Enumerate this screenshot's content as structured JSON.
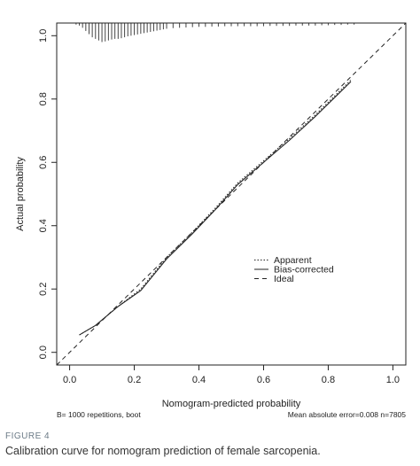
{
  "chart_data": {
    "type": "line",
    "xlabel": "Nomogram-predicted probability",
    "ylabel": "Actual probability",
    "xlim": [
      -0.04,
      1.04
    ],
    "ylim": [
      -0.04,
      1.04
    ],
    "x_ticks": [
      0.0,
      0.2,
      0.4,
      0.6,
      0.8,
      1.0
    ],
    "x_tick_labels": [
      "0.0",
      "0.2",
      "0.4",
      "0.6",
      "0.8",
      "1.0"
    ],
    "y_ticks": [
      0.0,
      0.2,
      0.4,
      0.6,
      0.8,
      1.0
    ],
    "y_tick_labels": [
      "0.0",
      "0.2",
      "0.4",
      "0.6",
      "0.8",
      "1.0"
    ],
    "grid": false,
    "legend_position": "center-right",
    "legend": [
      "Apparent",
      "Bias-corrected",
      "Ideal"
    ],
    "series": [
      {
        "name": "Apparent",
        "style": "dotted",
        "x": [
          0.03,
          0.08,
          0.15,
          0.22,
          0.3,
          0.38,
          0.45,
          0.52,
          0.6,
          0.68,
          0.76,
          0.83,
          0.87
        ],
        "y": [
          0.055,
          0.085,
          0.145,
          0.2,
          0.3,
          0.38,
          0.455,
          0.535,
          0.605,
          0.675,
          0.75,
          0.82,
          0.86
        ]
      },
      {
        "name": "Bias-corrected",
        "style": "solid",
        "x": [
          0.03,
          0.08,
          0.15,
          0.22,
          0.3,
          0.38,
          0.45,
          0.52,
          0.6,
          0.68,
          0.76,
          0.83,
          0.87
        ],
        "y": [
          0.055,
          0.085,
          0.145,
          0.195,
          0.295,
          0.375,
          0.45,
          0.53,
          0.6,
          0.67,
          0.745,
          0.815,
          0.855
        ]
      },
      {
        "name": "Ideal",
        "style": "dashed",
        "x": [
          -0.04,
          1.04
        ],
        "y": [
          -0.04,
          1.04
        ]
      }
    ],
    "rug": {
      "x": [
        0.02,
        0.03,
        0.04,
        0.05,
        0.06,
        0.07,
        0.08,
        0.09,
        0.1,
        0.11,
        0.12,
        0.13,
        0.14,
        0.15,
        0.16,
        0.17,
        0.18,
        0.19,
        0.2,
        0.21,
        0.22,
        0.23,
        0.24,
        0.25,
        0.26,
        0.27,
        0.28,
        0.29,
        0.3,
        0.32,
        0.34,
        0.36,
        0.38,
        0.4,
        0.42,
        0.44,
        0.46,
        0.48,
        0.5,
        0.52,
        0.54,
        0.56,
        0.58,
        0.6,
        0.62,
        0.64,
        0.66,
        0.68,
        0.7,
        0.72,
        0.74,
        0.76,
        0.78,
        0.8,
        0.82,
        0.84,
        0.86,
        0.88
      ],
      "h": [
        0.005,
        0.008,
        0.015,
        0.025,
        0.035,
        0.045,
        0.05,
        0.055,
        0.06,
        0.058,
        0.055,
        0.052,
        0.05,
        0.05,
        0.048,
        0.045,
        0.042,
        0.04,
        0.038,
        0.036,
        0.034,
        0.032,
        0.03,
        0.028,
        0.026,
        0.024,
        0.022,
        0.02,
        0.018,
        0.016,
        0.015,
        0.014,
        0.013,
        0.012,
        0.012,
        0.011,
        0.011,
        0.01,
        0.01,
        0.01,
        0.01,
        0.01,
        0.01,
        0.01,
        0.009,
        0.009,
        0.009,
        0.009,
        0.008,
        0.008,
        0.008,
        0.008,
        0.007,
        0.007,
        0.006,
        0.006,
        0.005,
        0.005
      ]
    },
    "footnote_left": "B= 1000 repetitions, boot",
    "footnote_right": "Mean absolute error=0.008 n=7805"
  },
  "caption": {
    "label": "FIGURE 4",
    "text": "Calibration curve for nomogram prediction of female sarcopenia."
  }
}
